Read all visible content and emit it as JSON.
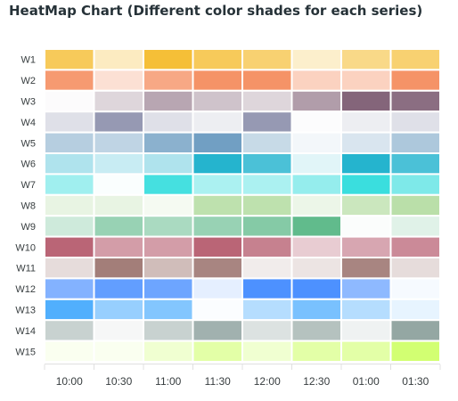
{
  "chart_data": {
    "type": "heatmap",
    "title": "HeatMap Chart (Different color shades for each series)",
    "categories": [
      "10:00",
      "10:30",
      "11:00",
      "11:30",
      "12:00",
      "12:30",
      "01:00",
      "01:30"
    ],
    "series": [
      {
        "name": "W1",
        "color": "#F3B415",
        "values": [
          70,
          25,
          85,
          70,
          60,
          20,
          50,
          60
        ]
      },
      {
        "name": "W2",
        "color": "#F27036",
        "values": [
          70,
          20,
          60,
          75,
          75,
          30,
          30,
          75
        ]
      },
      {
        "name": "W3",
        "color": "#663F59",
        "values": [
          0,
          20,
          45,
          30,
          20,
          50,
          80,
          75
        ]
      },
      {
        "name": "W4",
        "color": "#6A6E94",
        "values": [
          20,
          70,
          20,
          10,
          70,
          0,
          10,
          20
        ]
      },
      {
        "name": "W5",
        "color": "#4E88B4",
        "values": [
          40,
          35,
          65,
          80,
          30,
          5,
          20,
          45
        ]
      },
      {
        "name": "W6",
        "color": "#00A7C6",
        "values": [
          30,
          20,
          30,
          85,
          70,
          10,
          85,
          70
        ]
      },
      {
        "name": "W7",
        "color": "#18D8D8",
        "values": [
          40,
          0,
          80,
          35,
          35,
          45,
          85,
          55
        ]
      },
      {
        "name": "W8",
        "color": "#A9D794",
        "values": [
          25,
          25,
          10,
          75,
          75,
          20,
          60,
          80
        ]
      },
      {
        "name": "W9",
        "color": "#46AF78",
        "values": [
          25,
          55,
          45,
          55,
          65,
          85,
          0,
          15
        ]
      },
      {
        "name": "W10",
        "color": "#A93F55",
        "values": [
          80,
          50,
          50,
          80,
          65,
          25,
          45,
          60
        ]
      },
      {
        "name": "W11",
        "color": "#8C5E58",
        "values": [
          20,
          80,
          40,
          75,
          10,
          15,
          75,
          20
        ]
      },
      {
        "name": "W12",
        "color": "#2176FF",
        "values": [
          55,
          70,
          65,
          10,
          80,
          80,
          50,
          2
        ]
      },
      {
        "name": "W13",
        "color": "#33A1FD",
        "values": [
          85,
          50,
          60,
          0,
          35,
          65,
          35,
          10
        ]
      },
      {
        "name": "W14",
        "color": "#7A918D",
        "values": [
          40,
          5,
          40,
          70,
          25,
          55,
          10,
          80
        ]
      },
      {
        "name": "W15",
        "color": "#BAFF29",
        "values": [
          5,
          5,
          20,
          40,
          20,
          40,
          40,
          65
        ]
      }
    ]
  }
}
